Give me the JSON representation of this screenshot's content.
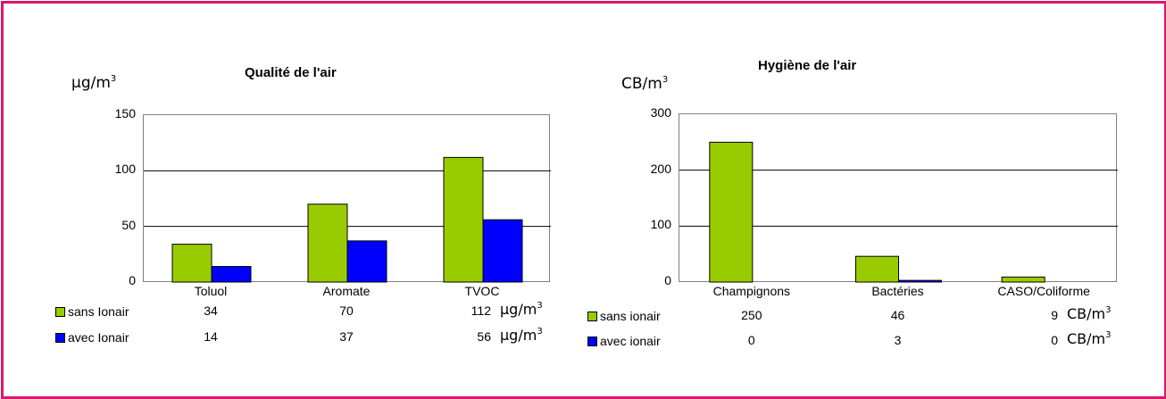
{
  "colors": {
    "frame": "#d6186c",
    "sans": "#99cc00",
    "avec": "#0000ff"
  },
  "chart_data": [
    {
      "type": "bar",
      "title": "Qualité de l'air",
      "unit_main": "µg/m",
      "unit_exp": "3",
      "categories": [
        "Toluol",
        "Aromate",
        "TVOC"
      ],
      "series": [
        {
          "name": "sans Ionair",
          "values": [
            34,
            70,
            112
          ],
          "color": "#99cc00"
        },
        {
          "name": "avec Ionair",
          "values": [
            14,
            37,
            56
          ],
          "color": "#0000ff"
        }
      ],
      "ylim": [
        0,
        150
      ],
      "yticks": [
        "0",
        "50",
        "100",
        "150"
      ],
      "ytick_values": [
        0,
        50,
        100,
        150
      ],
      "table": [
        {
          "label": "sans Ionair",
          "cells": [
            "34",
            "70",
            "112"
          ],
          "unit_main": "µg/m",
          "unit_exp": "3"
        },
        {
          "label": "avec Ionair",
          "cells": [
            "14",
            "37",
            "56"
          ],
          "unit_main": "µg/m",
          "unit_exp": "3"
        }
      ]
    },
    {
      "type": "bar",
      "title": "Hygiène de l'air",
      "unit_main": "CB/m",
      "unit_exp": "3",
      "categories": [
        "Champignons",
        "Bactéries",
        "CASO/Coliforme"
      ],
      "series": [
        {
          "name": "sans ionair",
          "values": [
            250,
            46,
            9
          ],
          "color": "#99cc00"
        },
        {
          "name": "avec ionair",
          "values": [
            0,
            3,
            0
          ],
          "color": "#0000ff"
        }
      ],
      "ylim": [
        0,
        300
      ],
      "yticks": [
        "0",
        "100",
        "200",
        "300"
      ],
      "ytick_values": [
        0,
        100,
        200,
        300
      ],
      "table": [
        {
          "label": "sans ionair",
          "cells": [
            "250",
            "46",
            "9"
          ],
          "unit_main": "CB/m",
          "unit_exp": "3"
        },
        {
          "label": "avec ionair",
          "cells": [
            "0",
            "3",
            "0"
          ],
          "unit_main": "CB/m",
          "unit_exp": "3"
        }
      ]
    }
  ]
}
